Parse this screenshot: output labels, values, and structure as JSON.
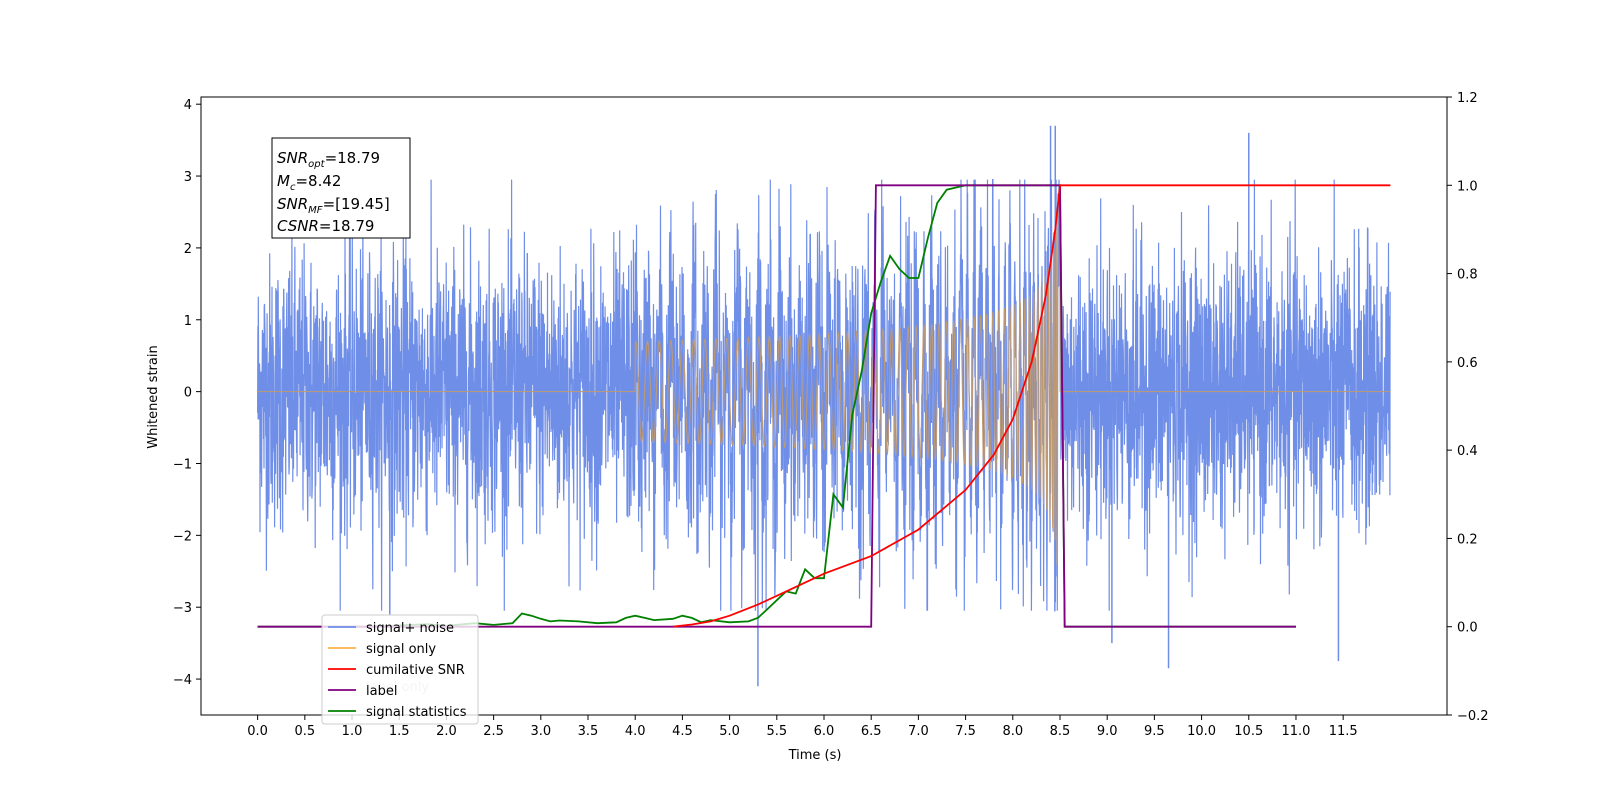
{
  "chart_data": {
    "type": "line",
    "xlabel": "Time (s)",
    "ylabel": "Whitened strain",
    "xlim": [
      -0.6,
      12.6
    ],
    "ylim": [
      -4.5,
      4.1
    ],
    "y2lim": [
      -0.2,
      1.2
    ],
    "x_ticks": [
      "0.0",
      "0.5",
      "1.0",
      "1.5",
      "2.0",
      "2.5",
      "3.0",
      "3.5",
      "4.0",
      "4.5",
      "5.0",
      "5.5",
      "6.0",
      "6.5",
      "7.0",
      "7.5",
      "8.0",
      "8.5",
      "9.0",
      "9.5",
      "10.0",
      "10.5",
      "11.0",
      "11.5"
    ],
    "y_ticks": [
      "4",
      "3",
      "2",
      "1",
      "0",
      "−1",
      "−2",
      "−3",
      "−4"
    ],
    "y2_ticks": [
      "1.2",
      "1.0",
      "0.8",
      "0.6",
      "0.4",
      "0.2",
      "0.0",
      "−0.2"
    ],
    "grid": false,
    "annotation": {
      "snr_opt": "=18.79",
      "mc": "=8.42",
      "snr_mf": "=[19.45]",
      "csnr": "=18.79"
    },
    "legend": {
      "placement": "lower-left",
      "entries": [
        {
          "label": "signal+ noise",
          "color": "#6f8ee8"
        },
        {
          "label": "signal only",
          "color": "#ffb347"
        },
        {
          "label": "cumilative SNR",
          "color": "#ff0000"
        },
        {
          "label": "label",
          "color": "#800080"
        },
        {
          "label": "signal statistics",
          "color": "#008000"
        }
      ]
    },
    "hidden_label": "label only",
    "series": [
      {
        "name": "signal+ noise",
        "axis": "left",
        "color": "#6f8ee8",
        "description": "whitened noise with injected chirp from 0.0 to 12.0 s",
        "noise_std": 1.0,
        "extremes": [
          [
            1.4,
            -3.1
          ],
          [
            5.3,
            -4.1
          ],
          [
            8.4,
            3.7
          ],
          [
            8.45,
            3.7
          ],
          [
            9.05,
            -3.5
          ],
          [
            9.65,
            -3.85
          ],
          [
            10.5,
            3.6
          ],
          [
            11.45,
            -3.75
          ]
        ]
      },
      {
        "name": "signal only",
        "axis": "left",
        "color": "#ffb347",
        "chirp_start": 4.0,
        "chirp_merger": 8.5,
        "peak_amplitude": 2.7
      },
      {
        "name": "cumilative SNR",
        "axis": "right",
        "color": "#ff0000",
        "points": [
          [
            4.4,
            0.0
          ],
          [
            4.6,
            0.005
          ],
          [
            4.8,
            0.012
          ],
          [
            5.0,
            0.025
          ],
          [
            5.3,
            0.05
          ],
          [
            5.6,
            0.08
          ],
          [
            6.0,
            0.12
          ],
          [
            6.5,
            0.16
          ],
          [
            7.0,
            0.22
          ],
          [
            7.5,
            0.31
          ],
          [
            7.8,
            0.39
          ],
          [
            8.0,
            0.47
          ],
          [
            8.2,
            0.6
          ],
          [
            8.35,
            0.75
          ],
          [
            8.45,
            0.9
          ],
          [
            8.5,
            1.0
          ],
          [
            12.0,
            1.0
          ]
        ]
      },
      {
        "name": "label",
        "axis": "right",
        "color": "#800080",
        "points": [
          [
            0.0,
            0.0
          ],
          [
            6.5,
            0.0
          ],
          [
            6.55,
            1.0
          ],
          [
            8.5,
            1.0
          ],
          [
            8.55,
            0.0
          ],
          [
            11.0,
            0.0
          ]
        ]
      },
      {
        "name": "signal statistics",
        "axis": "right",
        "color": "#008000",
        "points": [
          [
            0.0,
            0.0
          ],
          [
            0.8,
            0.0
          ],
          [
            1.2,
            0.0
          ],
          [
            1.5,
            0.003
          ],
          [
            1.8,
            0.006
          ],
          [
            2.0,
            0.002
          ],
          [
            2.3,
            0.008
          ],
          [
            2.5,
            0.004
          ],
          [
            2.7,
            0.008
          ],
          [
            2.8,
            0.03
          ],
          [
            2.9,
            0.025
          ],
          [
            3.0,
            0.018
          ],
          [
            3.1,
            0.012
          ],
          [
            3.2,
            0.014
          ],
          [
            3.4,
            0.012
          ],
          [
            3.6,
            0.008
          ],
          [
            3.8,
            0.01
          ],
          [
            3.9,
            0.02
          ],
          [
            4.0,
            0.025
          ],
          [
            4.1,
            0.02
          ],
          [
            4.2,
            0.015
          ],
          [
            4.4,
            0.018
          ],
          [
            4.5,
            0.025
          ],
          [
            4.6,
            0.02
          ],
          [
            4.7,
            0.01
          ],
          [
            4.8,
            0.015
          ],
          [
            5.0,
            0.01
          ],
          [
            5.2,
            0.012
          ],
          [
            5.3,
            0.02
          ],
          [
            5.4,
            0.04
          ],
          [
            5.5,
            0.06
          ],
          [
            5.6,
            0.08
          ],
          [
            5.7,
            0.075
          ],
          [
            5.8,
            0.13
          ],
          [
            5.9,
            0.11
          ],
          [
            6.0,
            0.11
          ],
          [
            6.1,
            0.3
          ],
          [
            6.2,
            0.27
          ],
          [
            6.3,
            0.48
          ],
          [
            6.4,
            0.58
          ],
          [
            6.5,
            0.71
          ],
          [
            6.6,
            0.78
          ],
          [
            6.7,
            0.84
          ],
          [
            6.8,
            0.81
          ],
          [
            6.9,
            0.79
          ],
          [
            7.0,
            0.79
          ],
          [
            7.1,
            0.88
          ],
          [
            7.2,
            0.96
          ],
          [
            7.3,
            0.99
          ],
          [
            7.5,
            1.0
          ],
          [
            8.5,
            1.0
          ],
          [
            8.55,
            0.0
          ],
          [
            11.0,
            0.0
          ]
        ]
      }
    ]
  }
}
